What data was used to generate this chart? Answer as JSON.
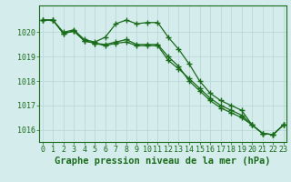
{
  "title": "Graphe pression niveau de la mer (hPa)",
  "background_color": "#d4ecec",
  "grid_color": "#b8d4d4",
  "line_color": "#1a6b1a",
  "hours": [
    0,
    1,
    2,
    3,
    4,
    5,
    6,
    7,
    8,
    9,
    10,
    11,
    12,
    13,
    14,
    15,
    16,
    17,
    18,
    19,
    20,
    21,
    22,
    23
  ],
  "line1": [
    1020.5,
    1020.5,
    1020.0,
    1020.1,
    1019.7,
    1019.6,
    1019.8,
    1020.35,
    1020.5,
    1020.35,
    1020.4,
    1020.4,
    1019.8,
    1019.3,
    1018.7,
    1018.0,
    1017.5,
    1017.2,
    1017.0,
    1016.8,
    1016.2,
    1015.85,
    1015.8,
    1016.2
  ],
  "line2": [
    1020.5,
    1020.5,
    1019.95,
    1020.05,
    1019.65,
    1019.55,
    1019.5,
    1019.6,
    1019.7,
    1019.5,
    1019.5,
    1019.5,
    1019.0,
    1018.6,
    1018.0,
    1017.6,
    1017.2,
    1016.9,
    1016.7,
    1016.5,
    1016.2,
    1015.85,
    1015.8,
    1016.2
  ],
  "line3": [
    1020.5,
    1020.5,
    1019.95,
    1020.05,
    1019.65,
    1019.55,
    1019.45,
    1019.55,
    1019.6,
    1019.45,
    1019.45,
    1019.45,
    1018.85,
    1018.5,
    1018.1,
    1017.7,
    1017.3,
    1017.0,
    1016.8,
    1016.6,
    1016.2,
    1015.85,
    1015.8,
    1016.2
  ],
  "ylim_min": 1015.5,
  "ylim_max": 1021.1,
  "yticks": [
    1016,
    1017,
    1018,
    1019,
    1020
  ],
  "title_fontsize": 7.5,
  "tick_fontsize": 6.0
}
